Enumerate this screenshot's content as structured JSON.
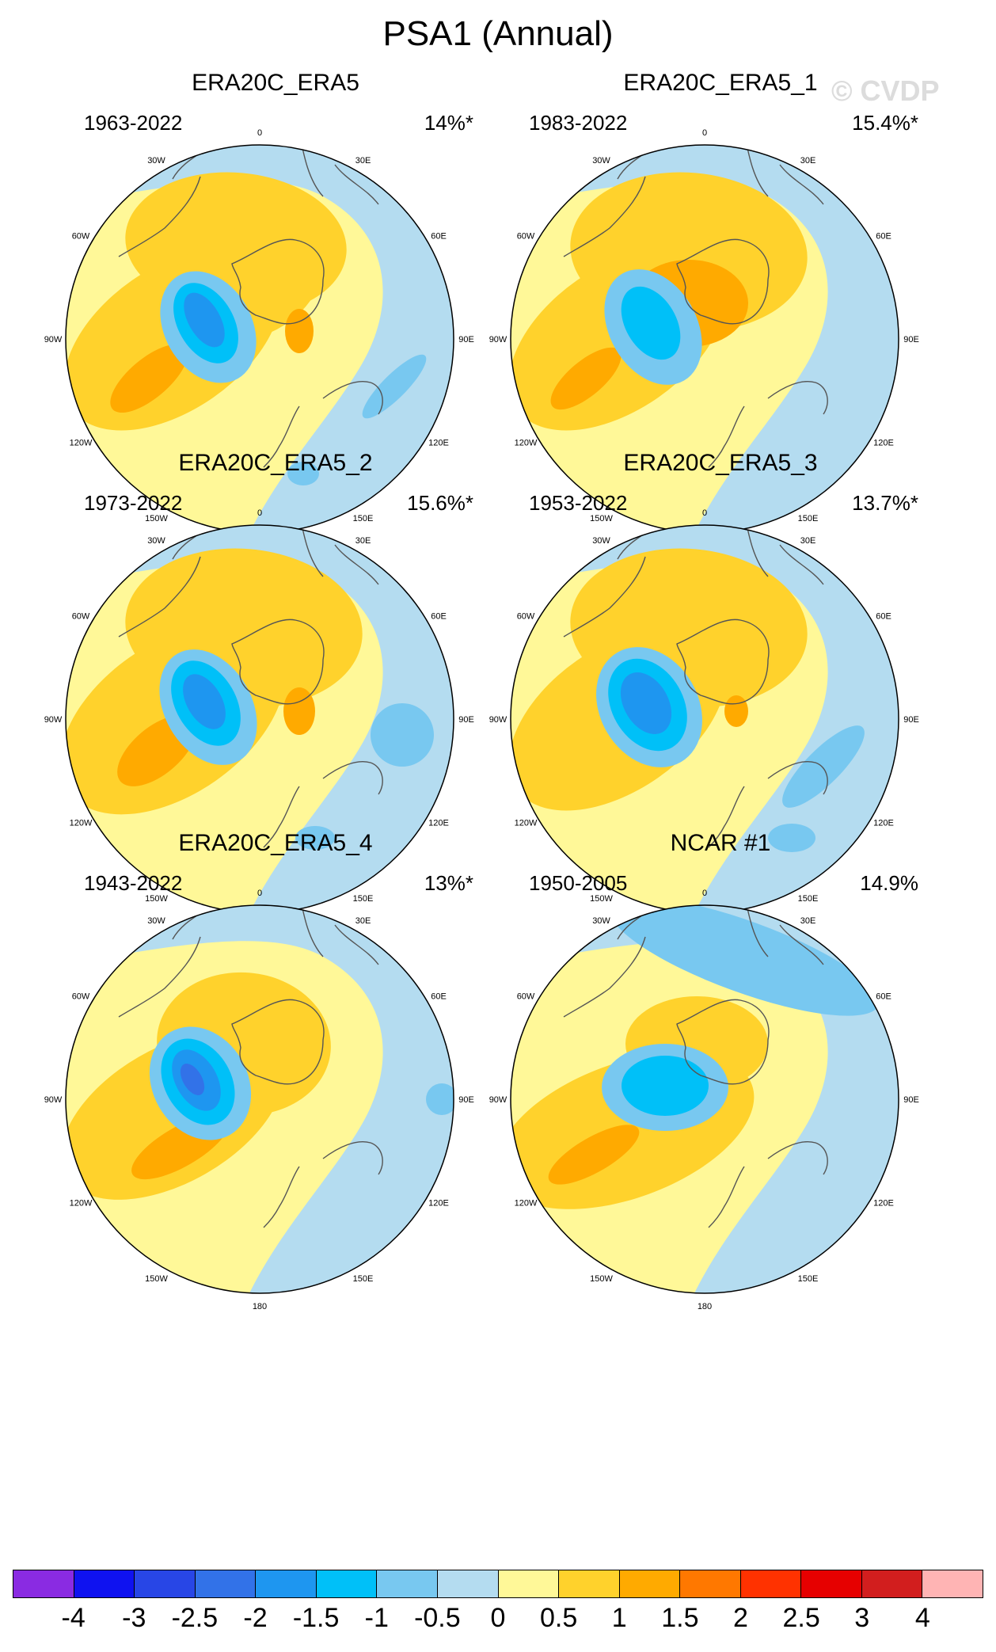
{
  "title": "PSA1 (Annual)",
  "watermark": "© CVDP",
  "longitude_labels": {
    "top": "0",
    "upper_left": "30W",
    "upper_right": "30E",
    "mid_upper_left": "60W",
    "mid_upper_right": "60E",
    "left": "90W",
    "right": "90E",
    "mid_lower_left": "120W",
    "mid_lower_right": "120E",
    "lower_left": "150W",
    "lower_right": "150E",
    "bottom": "180"
  },
  "panels": [
    {
      "name": "ERA20C_ERA5",
      "period": "1963-2022",
      "variance": "14%*"
    },
    {
      "name": "ERA20C_ERA5_1",
      "period": "1983-2022",
      "variance": "15.4%*"
    },
    {
      "name": "ERA20C_ERA5_2",
      "period": "1973-2022",
      "variance": "15.6%*"
    },
    {
      "name": "ERA20C_ERA5_3",
      "period": "1953-2022",
      "variance": "13.7%*"
    },
    {
      "name": "ERA20C_ERA5_4",
      "period": "1943-2022",
      "variance": "13%*"
    },
    {
      "name": "NCAR #1",
      "period": "1950-2005",
      "variance": "14.9%"
    }
  ],
  "colorbar": {
    "levels": [
      "-4",
      "-3",
      "-2.5",
      "-2",
      "-1.5",
      "-1",
      "-0.5",
      "0",
      "0.5",
      "1",
      "1.5",
      "2",
      "2.5",
      "3",
      "4"
    ],
    "colors": [
      "#8a2be2",
      "#0f12f0",
      "#2846e6",
      "#3272e8",
      "#1e96f0",
      "#00c0f8",
      "#78c8f0",
      "#b4dcf0",
      "#fff898",
      "#ffd22c",
      "#ffaa00",
      "#ff7800",
      "#ff3200",
      "#e60000",
      "#d21e1e",
      "#ffb4b4"
    ]
  },
  "colors": {
    "ocean_base": "#b4dcf0",
    "coastline": "#555555",
    "frame": "#000000"
  }
}
